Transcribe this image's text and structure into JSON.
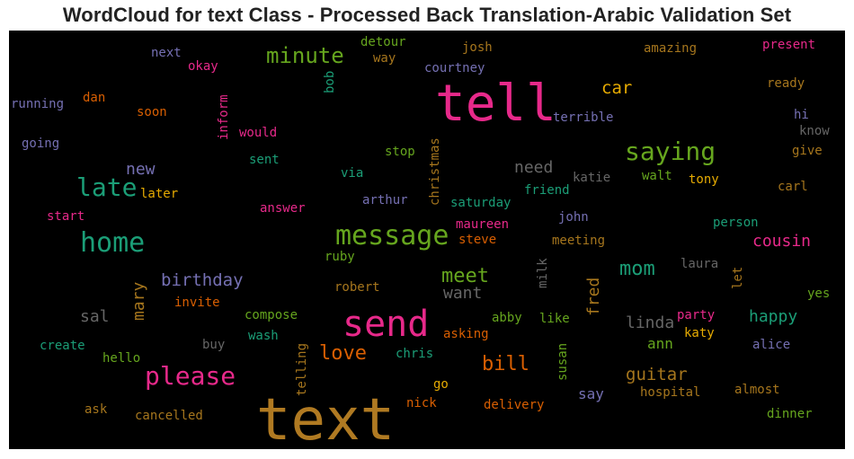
{
  "title": "WordCloud for text Class - Processed Back Translation-Arabic Validation Set",
  "colors": {
    "background": "#000000",
    "page": "#ffffff"
  },
  "chart_data": {
    "type": "wordcloud",
    "title": "WordCloud for text Class - Processed Back Translation-Arabic Validation Set",
    "words": [
      {
        "text": "text",
        "weight": 1.0,
        "color": "#b07a22"
      },
      {
        "text": "tell",
        "weight": 0.82,
        "color": "#e7298a"
      },
      {
        "text": "send",
        "weight": 0.55,
        "color": "#e7298a"
      },
      {
        "text": "message",
        "weight": 0.4,
        "color": "#66a61e"
      },
      {
        "text": "saying",
        "weight": 0.37,
        "color": "#66a61e"
      },
      {
        "text": "home",
        "weight": 0.37,
        "color": "#1b9e77"
      },
      {
        "text": "late",
        "weight": 0.35,
        "color": "#1b9e77"
      },
      {
        "text": "please",
        "weight": 0.33,
        "color": "#e7298a"
      },
      {
        "text": "minute",
        "weight": 0.3,
        "color": "#66a61e"
      },
      {
        "text": "love",
        "weight": 0.28,
        "color": "#d95f02"
      },
      {
        "text": "meet",
        "weight": 0.27,
        "color": "#66a61e"
      },
      {
        "text": "bill",
        "weight": 0.27,
        "color": "#d95f02"
      },
      {
        "text": "mom",
        "weight": 0.25,
        "color": "#1b9e77"
      },
      {
        "text": "car",
        "weight": 0.22,
        "color": "#e6ab02"
      },
      {
        "text": "guitar",
        "weight": 0.22,
        "color": "#a6761d"
      },
      {
        "text": "birthday",
        "weight": 0.21,
        "color": "#7570b3"
      },
      {
        "text": "cousin",
        "weight": 0.21,
        "color": "#e7298a"
      },
      {
        "text": "new",
        "weight": 0.2,
        "color": "#7570b3"
      },
      {
        "text": "need",
        "weight": 0.2,
        "color": "#666666"
      },
      {
        "text": "want",
        "weight": 0.2,
        "color": "#666666"
      },
      {
        "text": "linda",
        "weight": 0.2,
        "color": "#666666"
      },
      {
        "text": "happy",
        "weight": 0.2,
        "color": "#1b9e77"
      },
      {
        "text": "mary",
        "weight": 0.2,
        "color": "#a6761d"
      },
      {
        "text": "fred",
        "weight": 0.2,
        "color": "#a6761d"
      },
      {
        "text": "sal",
        "weight": 0.2,
        "color": "#666666"
      },
      {
        "text": "ann",
        "weight": 0.17,
        "color": "#66a61e"
      },
      {
        "text": "say",
        "weight": 0.18,
        "color": "#7570b3"
      },
      {
        "text": "terrible",
        "weight": 0.15,
        "color": "#7570b3"
      },
      {
        "text": "christmas",
        "weight": 0.15,
        "color": "#a6761d"
      },
      {
        "text": "saturday",
        "weight": 0.15,
        "color": "#1b9e77"
      },
      {
        "text": "friend",
        "weight": 0.15,
        "color": "#1b9e77"
      },
      {
        "text": "katie",
        "weight": 0.15,
        "color": "#666666"
      },
      {
        "text": "walt",
        "weight": 0.15,
        "color": "#66a61e"
      },
      {
        "text": "tony",
        "weight": 0.15,
        "color": "#e6ab02"
      },
      {
        "text": "maureen",
        "weight": 0.15,
        "color": "#e7298a"
      },
      {
        "text": "john",
        "weight": 0.15,
        "color": "#7570b3"
      },
      {
        "text": "steve",
        "weight": 0.15,
        "color": "#d95f02"
      },
      {
        "text": "meeting",
        "weight": 0.15,
        "color": "#a6761d"
      },
      {
        "text": "person",
        "weight": 0.15,
        "color": "#1b9e77"
      },
      {
        "text": "laura",
        "weight": 0.15,
        "color": "#666666"
      },
      {
        "text": "let",
        "weight": 0.15,
        "color": "#a6761d"
      },
      {
        "text": "party",
        "weight": 0.15,
        "color": "#e7298a"
      },
      {
        "text": "katy",
        "weight": 0.15,
        "color": "#e6ab02"
      },
      {
        "text": "alice",
        "weight": 0.15,
        "color": "#7570b3"
      },
      {
        "text": "hospital",
        "weight": 0.15,
        "color": "#a6761d"
      },
      {
        "text": "almost",
        "weight": 0.15,
        "color": "#a6761d"
      },
      {
        "text": "dinner",
        "weight": 0.15,
        "color": "#66a61e"
      },
      {
        "text": "delivery",
        "weight": 0.15,
        "color": "#d95f02"
      },
      {
        "text": "susan",
        "weight": 0.15,
        "color": "#66a61e"
      },
      {
        "text": "like",
        "weight": 0.15,
        "color": "#66a61e"
      },
      {
        "text": "abby",
        "weight": 0.15,
        "color": "#66a61e"
      },
      {
        "text": "asking",
        "weight": 0.15,
        "color": "#d95f02"
      },
      {
        "text": "chris",
        "weight": 0.15,
        "color": "#1b9e77"
      },
      {
        "text": "nick",
        "weight": 0.15,
        "color": "#d95f02"
      },
      {
        "text": "go",
        "weight": 0.15,
        "color": "#e6ab02"
      },
      {
        "text": "milk",
        "weight": 0.15,
        "color": "#666666"
      },
      {
        "text": "robert",
        "weight": 0.15,
        "color": "#a6761d"
      },
      {
        "text": "ruby",
        "weight": 0.15,
        "color": "#66a61e"
      },
      {
        "text": "compose",
        "weight": 0.15,
        "color": "#66a61e"
      },
      {
        "text": "wash",
        "weight": 0.15,
        "color": "#1b9e77"
      },
      {
        "text": "telling",
        "weight": 0.15,
        "color": "#a6761d"
      },
      {
        "text": "buy",
        "weight": 0.15,
        "color": "#666666"
      },
      {
        "text": "invite",
        "weight": 0.15,
        "color": "#d95f02"
      },
      {
        "text": "create",
        "weight": 0.15,
        "color": "#1b9e77"
      },
      {
        "text": "hello",
        "weight": 0.15,
        "color": "#66a61e"
      },
      {
        "text": "ask",
        "weight": 0.15,
        "color": "#a6761d"
      },
      {
        "text": "cancelled",
        "weight": 0.15,
        "color": "#a6761d"
      },
      {
        "text": "answer",
        "weight": 0.15,
        "color": "#e7298a"
      },
      {
        "text": "start",
        "weight": 0.15,
        "color": "#e7298a"
      },
      {
        "text": "later",
        "weight": 0.15,
        "color": "#e6ab02"
      },
      {
        "text": "arthur",
        "weight": 0.15,
        "color": "#7570b3"
      },
      {
        "text": "via",
        "weight": 0.15,
        "color": "#1b9e77"
      },
      {
        "text": "sent",
        "weight": 0.15,
        "color": "#1b9e77"
      },
      {
        "text": "stop",
        "weight": 0.15,
        "color": "#66a61e"
      },
      {
        "text": "would",
        "weight": 0.15,
        "color": "#e7298a"
      },
      {
        "text": "inform",
        "weight": 0.15,
        "color": "#e7298a"
      },
      {
        "text": "going",
        "weight": 0.15,
        "color": "#7570b3"
      },
      {
        "text": "soon",
        "weight": 0.15,
        "color": "#d95f02"
      },
      {
        "text": "dan",
        "weight": 0.15,
        "color": "#d95f02"
      },
      {
        "text": "running",
        "weight": 0.15,
        "color": "#7570b3"
      },
      {
        "text": "next",
        "weight": 0.15,
        "color": "#7570b3"
      },
      {
        "text": "okay",
        "weight": 0.15,
        "color": "#e7298a"
      },
      {
        "text": "bob",
        "weight": 0.15,
        "color": "#1b9e77"
      },
      {
        "text": "detour",
        "weight": 0.15,
        "color": "#66a61e"
      },
      {
        "text": "way",
        "weight": 0.15,
        "color": "#a6761d"
      },
      {
        "text": "josh",
        "weight": 0.15,
        "color": "#a6761d"
      },
      {
        "text": "courtney",
        "weight": 0.15,
        "color": "#7570b3"
      },
      {
        "text": "amazing",
        "weight": 0.15,
        "color": "#a6761d"
      },
      {
        "text": "present",
        "weight": 0.15,
        "color": "#e7298a"
      },
      {
        "text": "ready",
        "weight": 0.15,
        "color": "#a6761d"
      },
      {
        "text": "hi",
        "weight": 0.15,
        "color": "#7570b3"
      },
      {
        "text": "know",
        "weight": 0.15,
        "color": "#666666"
      },
      {
        "text": "give",
        "weight": 0.15,
        "color": "#a6761d"
      },
      {
        "text": "carl",
        "weight": 0.15,
        "color": "#a6761d"
      },
      {
        "text": "yes",
        "weight": 0.15,
        "color": "#66a61e"
      }
    ]
  }
}
